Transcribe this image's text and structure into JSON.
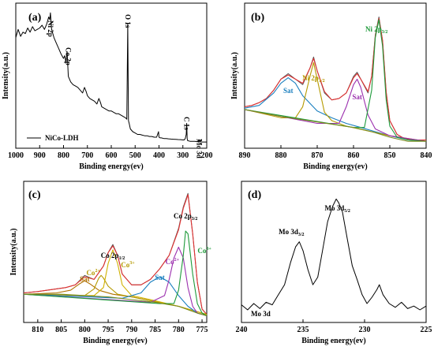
{
  "chart_data": [
    {
      "panel": "(a)",
      "type": "line",
      "xlabel": "Binding energy(ev)",
      "ylabel": "Intensity(a.u.)",
      "xlim": [
        1000,
        200
      ],
      "xticks": [
        1000,
        900,
        800,
        700,
        600,
        500,
        400,
        300,
        200
      ],
      "legend": "NiCo-LDH",
      "legend_placement": "bottom-left",
      "annotations": [
        {
          "text": "Ni 2p",
          "x": 855
        },
        {
          "text": "Co 2p",
          "x": 780
        },
        {
          "text": "O 1s",
          "x": 531
        },
        {
          "text": "C 1s",
          "x": 284
        },
        {
          "text": "Mo 3d",
          "x": 232
        }
      ],
      "series": [
        {
          "color": "#000000",
          "x": [
            1000,
            990,
            980,
            970,
            960,
            950,
            940,
            930,
            920,
            910,
            900,
            890,
            880,
            870,
            862,
            858,
            855,
            850,
            840,
            830,
            820,
            810,
            800,
            795,
            790,
            785,
            780,
            775,
            770,
            760,
            750,
            740,
            730,
            720,
            712,
            705,
            700,
            690,
            680,
            670,
            660,
            652,
            645,
            640,
            630,
            620,
            610,
            600,
            590,
            580,
            570,
            560,
            550,
            540,
            535,
            531,
            528,
            525,
            520,
            510,
            500,
            490,
            480,
            470,
            460,
            450,
            440,
            430,
            420,
            410,
            402,
            400,
            395,
            390,
            380,
            370,
            360,
            350,
            340,
            330,
            320,
            310,
            300,
            295,
            290,
            286,
            284,
            282,
            280,
            270,
            260,
            250,
            240,
            232,
            228,
            220,
            210,
            200
          ],
          "y": [
            0.8,
            0.86,
            0.81,
            0.84,
            0.83,
            0.87,
            0.84,
            0.88,
            0.85,
            0.86,
            0.87,
            0.89,
            0.86,
            0.9,
            0.95,
            0.93,
            0.98,
            0.86,
            0.8,
            0.76,
            0.72,
            0.68,
            0.65,
            0.67,
            0.62,
            0.7,
            0.52,
            0.5,
            0.48,
            0.46,
            0.45,
            0.44,
            0.42,
            0.4,
            0.44,
            0.41,
            0.38,
            0.36,
            0.35,
            0.34,
            0.32,
            0.36,
            0.33,
            0.3,
            0.29,
            0.28,
            0.27,
            0.27,
            0.26,
            0.25,
            0.25,
            0.24,
            0.23,
            0.22,
            0.21,
            0.9,
            0.2,
            0.18,
            0.14,
            0.12,
            0.11,
            0.1,
            0.1,
            0.095,
            0.09,
            0.09,
            0.085,
            0.085,
            0.08,
            0.08,
            0.12,
            0.08,
            0.075,
            0.075,
            0.07,
            0.07,
            0.068,
            0.066,
            0.065,
            0.064,
            0.063,
            0.062,
            0.06,
            0.06,
            0.07,
            0.1,
            0.18,
            0.07,
            0.055,
            0.05,
            0.05,
            0.05,
            0.048,
            0.06,
            0.048,
            0.045,
            0.045,
            0.045
          ]
        }
      ]
    },
    {
      "panel": "(b)",
      "type": "line",
      "xlabel": "Binding energy(ev)",
      "ylabel": "Intensity(a.u.)",
      "xlim": [
        890,
        840
      ],
      "xticks": [
        890,
        880,
        870,
        860,
        850,
        840
      ],
      "annotations": [
        {
          "text": "Sat",
          "x": 878,
          "color": "#1a7fbf"
        },
        {
          "text": "Ni 2p1/2",
          "x": 871,
          "color": "#b59a00"
        },
        {
          "text": "Sat",
          "x": 859,
          "color": "#9b2fae"
        },
        {
          "text": "Ni 2p3/2",
          "x": 853,
          "color": "#1e9a3a"
        }
      ],
      "series": [
        {
          "name": "raw",
          "color": "#555555",
          "x": [
            890,
            888,
            886,
            884,
            882,
            880,
            878,
            876,
            874,
            872,
            871,
            870,
            868,
            866,
            864,
            862,
            860,
            859,
            858,
            856,
            855,
            854,
            853,
            852,
            851,
            850,
            848,
            846,
            844,
            842,
            840
          ],
          "y": [
            0.3,
            0.31,
            0.33,
            0.36,
            0.42,
            0.5,
            0.54,
            0.5,
            0.46,
            0.58,
            0.66,
            0.56,
            0.4,
            0.35,
            0.36,
            0.4,
            0.52,
            0.55,
            0.5,
            0.4,
            0.52,
            0.82,
            0.95,
            0.78,
            0.4,
            0.2,
            0.1,
            0.07,
            0.06,
            0.06,
            0.06
          ]
        },
        {
          "name": "envelope",
          "color": "#e03030",
          "x": [
            890,
            888,
            886,
            884,
            882,
            880,
            878,
            876,
            874,
            872,
            871,
            870,
            868,
            866,
            864,
            862,
            860,
            859,
            858,
            856,
            855,
            854,
            853,
            852,
            851,
            850,
            848,
            846,
            844,
            842,
            840
          ],
          "y": [
            0.3,
            0.31,
            0.33,
            0.36,
            0.42,
            0.5,
            0.53,
            0.5,
            0.47,
            0.58,
            0.65,
            0.56,
            0.41,
            0.35,
            0.36,
            0.4,
            0.51,
            0.54,
            0.5,
            0.41,
            0.52,
            0.81,
            0.94,
            0.78,
            0.41,
            0.2,
            0.1,
            0.07,
            0.06,
            0.06,
            0.06
          ]
        },
        {
          "name": "Sat (878)",
          "color": "#1a7fbf",
          "x": [
            890,
            886,
            882,
            880,
            878,
            876,
            874,
            870,
            866,
            862,
            858,
            854,
            850,
            845,
            840
          ],
          "y": [
            0.29,
            0.31,
            0.4,
            0.47,
            0.51,
            0.47,
            0.38,
            0.27,
            0.22,
            0.18,
            0.15,
            0.12,
            0.09,
            0.06,
            0.05
          ]
        },
        {
          "name": "Ni 2p1/2",
          "color": "#b59a00",
          "x": [
            890,
            880,
            876,
            874,
            872,
            871,
            870,
            868,
            866,
            862,
            850,
            840
          ],
          "y": [
            0.28,
            0.22,
            0.22,
            0.3,
            0.52,
            0.62,
            0.5,
            0.26,
            0.2,
            0.16,
            0.09,
            0.05
          ]
        },
        {
          "name": "Sat (859)",
          "color": "#9b2fae",
          "x": [
            890,
            870,
            864,
            862,
            860,
            859,
            858,
            856,
            854,
            850,
            840
          ],
          "y": [
            0.28,
            0.18,
            0.18,
            0.3,
            0.46,
            0.5,
            0.44,
            0.24,
            0.14,
            0.09,
            0.05
          ]
        },
        {
          "name": "Ni 2p3/2",
          "color": "#1e9a3a",
          "x": [
            890,
            860,
            857,
            855,
            854,
            853,
            852,
            851,
            850,
            848,
            845,
            840
          ],
          "y": [
            0.28,
            0.15,
            0.15,
            0.42,
            0.8,
            0.93,
            0.74,
            0.35,
            0.16,
            0.08,
            0.06,
            0.05
          ]
        },
        {
          "name": "baseline",
          "color": "#7a8a1e",
          "x": [
            890,
            880,
            870,
            865,
            860,
            855,
            850,
            845,
            840
          ],
          "y": [
            0.28,
            0.23,
            0.19,
            0.17,
            0.15,
            0.12,
            0.08,
            0.05,
            0.05
          ]
        }
      ]
    },
    {
      "panel": "(c)",
      "type": "line",
      "xlabel": "Binding energy(ev)",
      "ylabel": "Intensity(a.u.)",
      "xlim": [
        813,
        774
      ],
      "xticks": [
        810,
        805,
        800,
        795,
        790,
        785,
        780,
        775
      ],
      "annotations": [
        {
          "text": "Co 2p3/2",
          "x": 778.5,
          "color": "#000000"
        },
        {
          "text": "Co 2p1/2",
          "x": 794,
          "color": "#000000"
        },
        {
          "text": "Sat",
          "x": 800,
          "color": "#b07000"
        },
        {
          "text": "Co2+",
          "x": 796.5,
          "color": "#b59a00"
        },
        {
          "text": "Co3+",
          "x": 792.5,
          "color": "#b59a00"
        },
        {
          "text": "Sat",
          "x": 784,
          "color": "#1a7fbf"
        },
        {
          "text": "Co2+",
          "x": 780.5,
          "color": "#9b2fae"
        },
        {
          "text": "Co3+",
          "x": 776.5,
          "color": "#1e9a3a"
        }
      ],
      "series": [
        {
          "name": "raw",
          "color": "#555555",
          "x": [
            813,
            810,
            808,
            806,
            804,
            802,
            800,
            798,
            796,
            795,
            794,
            793,
            792,
            790,
            788,
            786,
            784,
            782,
            780,
            779,
            778,
            777,
            776,
            775,
            774
          ],
          "y": [
            0.22,
            0.23,
            0.24,
            0.25,
            0.26,
            0.28,
            0.35,
            0.32,
            0.42,
            0.52,
            0.58,
            0.5,
            0.36,
            0.28,
            0.28,
            0.32,
            0.4,
            0.5,
            0.7,
            0.86,
            0.96,
            0.66,
            0.3,
            0.1,
            0.06
          ]
        },
        {
          "name": "envelope",
          "color": "#e03030",
          "x": [
            813,
            810,
            808,
            806,
            804,
            802,
            800,
            798,
            796,
            795,
            794,
            793,
            792,
            790,
            788,
            786,
            784,
            782,
            780,
            779,
            778,
            777,
            776,
            775,
            774
          ],
          "y": [
            0.22,
            0.23,
            0.24,
            0.25,
            0.26,
            0.28,
            0.34,
            0.32,
            0.42,
            0.52,
            0.57,
            0.5,
            0.36,
            0.28,
            0.28,
            0.32,
            0.4,
            0.5,
            0.69,
            0.85,
            0.95,
            0.66,
            0.3,
            0.1,
            0.06
          ]
        },
        {
          "name": "Sat (800)",
          "color": "#b07000",
          "x": [
            813,
            806,
            803,
            801,
            800,
            799,
            797,
            794,
            790,
            780,
            774
          ],
          "y": [
            0.21,
            0.22,
            0.24,
            0.29,
            0.31,
            0.29,
            0.24,
            0.21,
            0.19,
            0.12,
            0.06
          ]
        },
        {
          "name": "Co2+ (796.5)",
          "color": "#b59a00",
          "x": [
            813,
            800,
            798,
            797,
            796.5,
            796,
            795,
            793,
            790,
            780,
            774
          ],
          "y": [
            0.21,
            0.2,
            0.25,
            0.33,
            0.35,
            0.33,
            0.27,
            0.21,
            0.19,
            0.12,
            0.06
          ]
        },
        {
          "name": "Co3+ (794)",
          "color": "#d0b000",
          "x": [
            813,
            798,
            796,
            795,
            794,
            793,
            792,
            790,
            786,
            780,
            774
          ],
          "y": [
            0.21,
            0.2,
            0.26,
            0.44,
            0.54,
            0.44,
            0.28,
            0.2,
            0.17,
            0.12,
            0.06
          ]
        },
        {
          "name": "Sat (784)",
          "color": "#1a7fbf",
          "x": [
            813,
            792,
            788,
            786,
            784,
            782,
            780,
            778,
            776,
            774
          ],
          "y": [
            0.21,
            0.18,
            0.22,
            0.3,
            0.34,
            0.3,
            0.2,
            0.12,
            0.07,
            0.05
          ]
        },
        {
          "name": "Co2+ (780)",
          "color": "#9b2fae",
          "x": [
            813,
            786,
            783,
            782,
            781,
            780,
            779,
            778,
            777,
            776,
            774
          ],
          "y": [
            0.21,
            0.15,
            0.2,
            0.32,
            0.48,
            0.56,
            0.48,
            0.26,
            0.12,
            0.07,
            0.05
          ]
        },
        {
          "name": "Co3+ (778)",
          "color": "#1e9a3a",
          "x": [
            813,
            784,
            781,
            780,
            779,
            778.5,
            778,
            777,
            776,
            775,
            774
          ],
          "y": [
            0.21,
            0.14,
            0.14,
            0.24,
            0.5,
            0.68,
            0.66,
            0.36,
            0.14,
            0.07,
            0.05
          ]
        },
        {
          "name": "baseline",
          "color": "#7a8a1e",
          "x": [
            813,
            805,
            800,
            795,
            790,
            785,
            780,
            776,
            774
          ],
          "y": [
            0.21,
            0.21,
            0.2,
            0.19,
            0.17,
            0.15,
            0.12,
            0.07,
            0.05
          ]
        }
      ]
    },
    {
      "panel": "(d)",
      "type": "line",
      "xlabel": "Binding energy(ev)",
      "xlim": [
        240,
        225
      ],
      "xticks": [
        240,
        235,
        230,
        225
      ],
      "legend": "Mo 3d",
      "legend_placement": "bottom-left",
      "annotations": [
        {
          "text": "Mo 3d5/2",
          "x": 232.2
        },
        {
          "text": "Mo 3d3/2",
          "x": 235.3
        }
      ],
      "series": [
        {
          "color": "#000000",
          "x": [
            240,
            239.5,
            239,
            238.5,
            238,
            237.5,
            237,
            236.5,
            236,
            235.6,
            235.3,
            235,
            234.6,
            234.2,
            233.8,
            233.4,
            233,
            232.6,
            232.3,
            232.1,
            231.8,
            231.4,
            231,
            230.6,
            230.2,
            229.8,
            229.4,
            229,
            228.8,
            228.5,
            228,
            227.5,
            227,
            226.5,
            226,
            225.5,
            225
          ],
          "y": [
            0.14,
            0.1,
            0.15,
            0.11,
            0.16,
            0.14,
            0.22,
            0.3,
            0.48,
            0.6,
            0.64,
            0.57,
            0.42,
            0.3,
            0.36,
            0.58,
            0.8,
            0.92,
            0.98,
            0.95,
            0.88,
            0.66,
            0.45,
            0.34,
            0.22,
            0.15,
            0.2,
            0.26,
            0.3,
            0.22,
            0.15,
            0.12,
            0.16,
            0.11,
            0.13,
            0.1,
            0.13
          ]
        }
      ]
    }
  ]
}
